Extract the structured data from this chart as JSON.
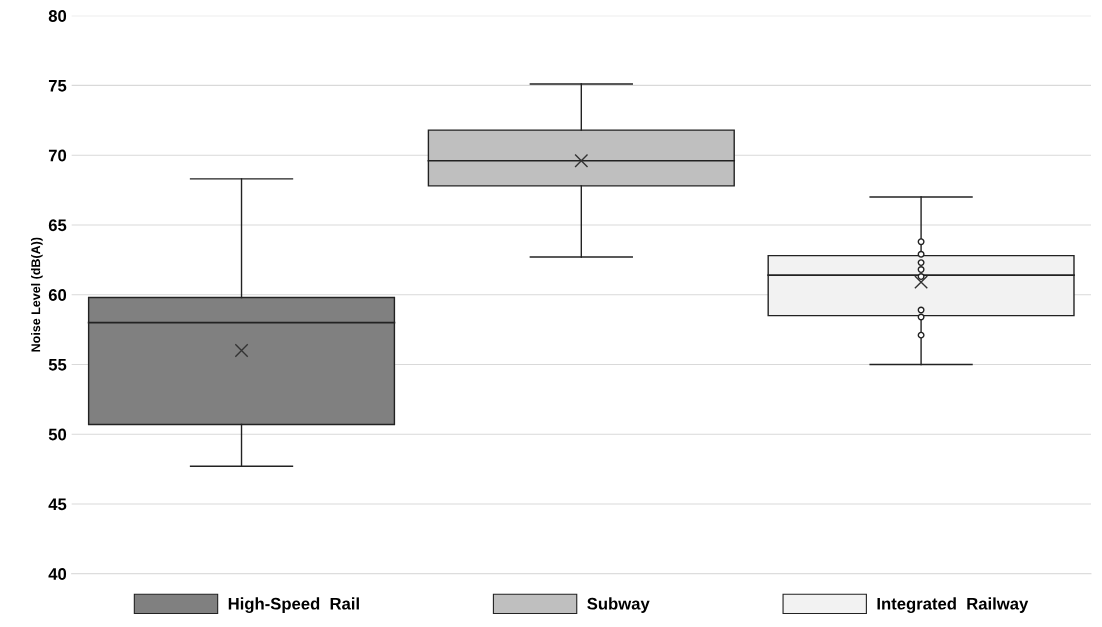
{
  "chart_data": {
    "type": "box",
    "ylabel": "Noise Level (dB(A))",
    "categories": [
      null,
      null,
      null
    ],
    "series": [
      {
        "name": "High-Speed  Rail",
        "color": "#808080",
        "boxes": [
          {
            "low": 47.7,
            "q1": 50.7,
            "median": 58.0,
            "q3": 59.8,
            "high": 68.3,
            "mean": 56.0
          },
          null,
          null
        ]
      },
      {
        "name": "Subway",
        "color": "#bfbfbf",
        "boxes": [
          null,
          {
            "low": 62.7,
            "q1": 67.8,
            "median": 69.6,
            "q3": 71.8,
            "high": 75.1,
            "mean": 69.6
          },
          null
        ]
      },
      {
        "name": "Integrated  Railway",
        "color": "#f2f2f2",
        "boxes": [
          null,
          null,
          {
            "low": 55.0,
            "q1": 58.5,
            "median": 61.4,
            "q3": 62.8,
            "high": 67.0,
            "mean": 60.9,
            "outliers": [
              63.8,
              62.9,
              62.3,
              61.8,
              61.3,
              58.9,
              58.4,
              57.1
            ]
          }
        ]
      }
    ],
    "ylim": [
      40,
      80
    ],
    "yticks": [
      40,
      45,
      50,
      55,
      60,
      65,
      70,
      75,
      80
    ],
    "grid": "y",
    "legend": "bottom",
    "tick_labels": "y"
  }
}
